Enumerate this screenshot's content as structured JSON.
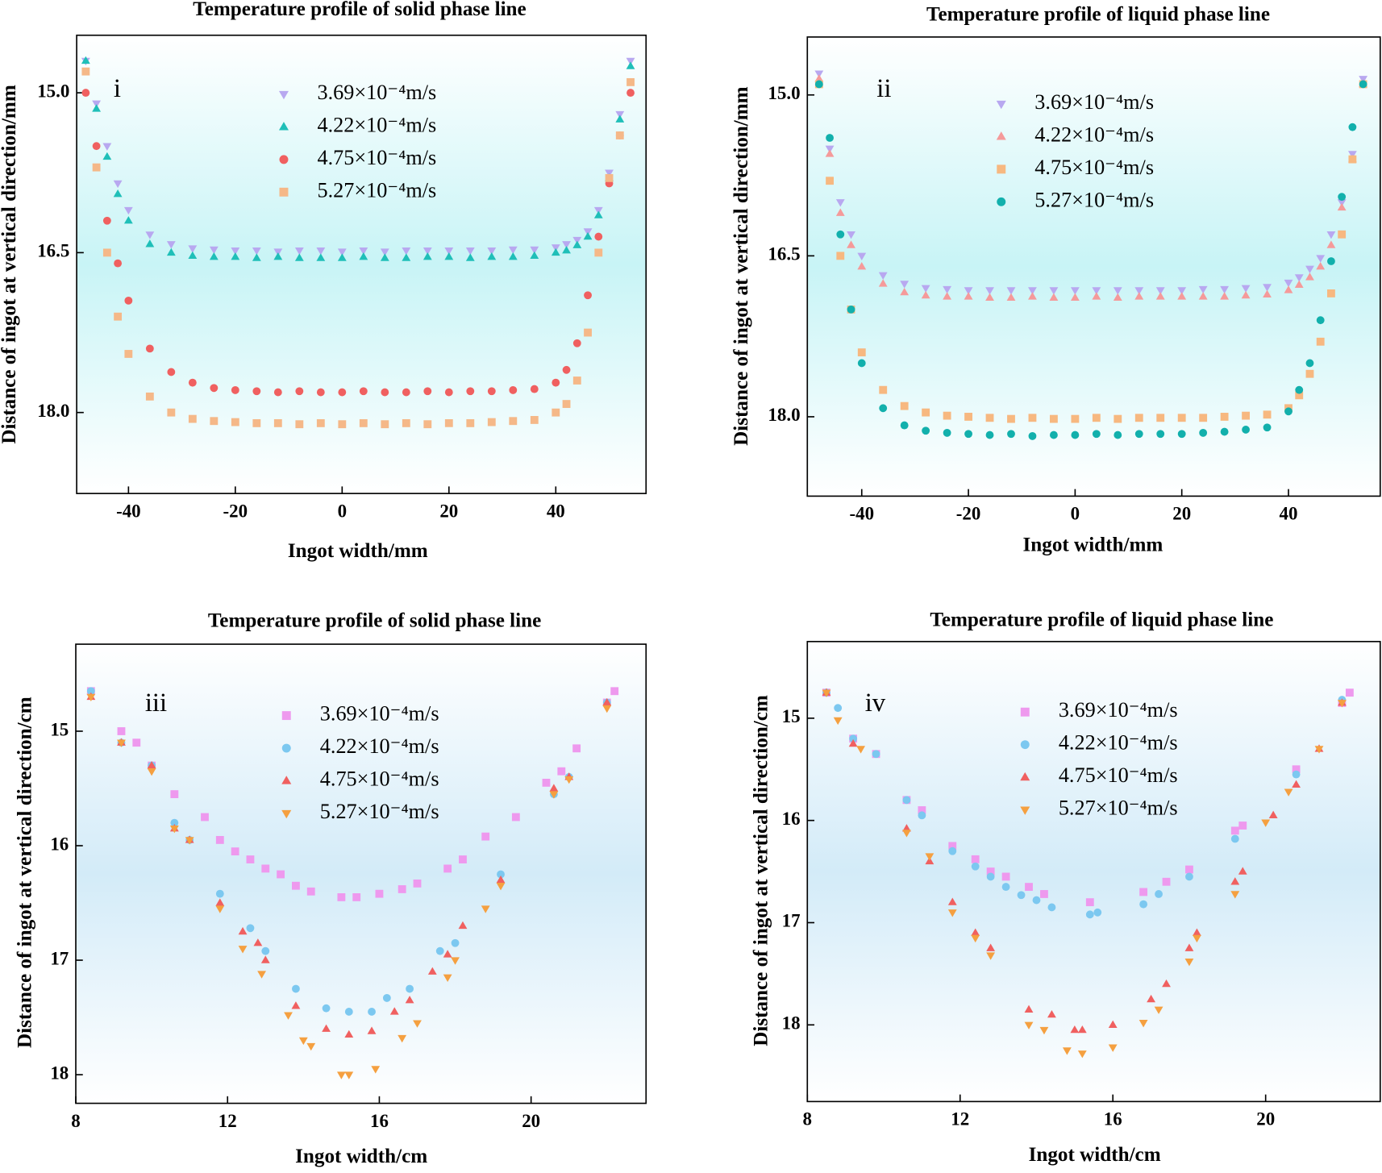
{
  "chart_data": [
    {
      "type": "scatter",
      "title": "Temperature profile of solid phase line",
      "panel_label": "i",
      "xlabel": "Ingot width/mm",
      "ylabel": "Distance of ingot at vertical direction/mm",
      "xlim": [
        -49.7,
        56.9
      ],
      "ylim": [
        14.46,
        18.76
      ],
      "y_inverted": true,
      "xticks": [
        -40,
        -20,
        0,
        20,
        40
      ],
      "yticks": [
        {
          "value": 15,
          "label": "15.0"
        },
        16.5,
        {
          "value": 18,
          "label": "18.0"
        }
      ],
      "x": [
        -48,
        -46,
        -44,
        -42,
        -40,
        -36,
        -32,
        -28,
        -24,
        -20,
        -16,
        -12,
        -8,
        -4,
        0,
        4,
        8,
        12,
        16,
        20,
        24,
        28,
        32,
        36,
        40,
        42,
        44,
        46,
        48,
        50,
        52,
        54
      ],
      "series": [
        {
          "name": "3.69×10⁻⁴m/s",
          "color": "#b8a8f0",
          "marker": "triangle-down",
          "values": [
            14.7,
            15.1,
            15.5,
            15.85,
            16.1,
            16.33,
            16.42,
            16.46,
            16.47,
            16.48,
            16.48,
            16.49,
            16.48,
            16.48,
            16.49,
            16.48,
            16.49,
            16.48,
            16.48,
            16.48,
            16.48,
            16.48,
            16.47,
            16.47,
            16.45,
            16.42,
            16.38,
            16.3,
            16.1,
            15.75,
            15.2,
            14.7
          ]
        },
        {
          "name": "4.22×10⁻⁴m/s",
          "color": "#1fbfb8",
          "marker": "triangle-up",
          "values": [
            14.7,
            15.15,
            15.6,
            15.95,
            16.2,
            16.42,
            16.5,
            16.53,
            16.54,
            16.54,
            16.55,
            16.54,
            16.55,
            16.55,
            16.55,
            16.54,
            16.55,
            16.55,
            16.54,
            16.54,
            16.55,
            16.54,
            16.54,
            16.53,
            16.5,
            16.48,
            16.43,
            16.35,
            16.15,
            15.8,
            15.25,
            14.75
          ]
        },
        {
          "name": "4.75×10⁻⁴m/s",
          "color": "#f06060",
          "marker": "circle",
          "values": [
            15.0,
            15.5,
            16.2,
            16.6,
            16.95,
            17.4,
            17.62,
            17.72,
            17.77,
            17.79,
            17.8,
            17.81,
            17.8,
            17.81,
            17.81,
            17.8,
            17.81,
            17.81,
            17.8,
            17.81,
            17.8,
            17.8,
            17.79,
            17.78,
            17.72,
            17.6,
            17.35,
            16.9,
            16.35,
            15.85,
            15.4,
            15.0
          ]
        },
        {
          "name": "5.27×10⁻⁴m/s",
          "color": "#f5b888",
          "marker": "square",
          "values": [
            14.8,
            15.7,
            16.5,
            17.1,
            17.45,
            17.85,
            18.0,
            18.06,
            18.08,
            18.09,
            18.1,
            18.1,
            18.11,
            18.1,
            18.11,
            18.1,
            18.11,
            18.1,
            18.11,
            18.1,
            18.1,
            18.09,
            18.08,
            18.07,
            18.0,
            17.92,
            17.7,
            17.25,
            16.5,
            15.8,
            15.4,
            14.9
          ]
        }
      ]
    },
    {
      "type": "scatter",
      "title": "Temperature profile of liquid phase line",
      "panel_label": "ii",
      "xlabel": "Ingot width/mm",
      "ylabel": "Distance of ingot at vertical direction/mm",
      "xlim": [
        -50.2,
        57.2
      ],
      "ylim": [
        14.46,
        18.74
      ],
      "y_inverted": true,
      "xticks": [
        -40,
        -20,
        0,
        20,
        40
      ],
      "yticks": [
        {
          "value": 15,
          "label": "15.0"
        },
        16.5,
        {
          "value": 18,
          "label": "18.0"
        }
      ],
      "x": [
        -48,
        -46,
        -44,
        -42,
        -40,
        -36,
        -32,
        -28,
        -24,
        -20,
        -16,
        -12,
        -8,
        -4,
        0,
        4,
        8,
        12,
        16,
        20,
        24,
        28,
        32,
        36,
        40,
        42,
        44,
        46,
        48,
        50,
        52,
        54
      ],
      "series": [
        {
          "name": "3.69×10⁻⁴m/s",
          "color": "#b8a8f0",
          "marker": "triangle-down",
          "values": [
            14.8,
            15.5,
            16.0,
            16.3,
            16.5,
            16.68,
            16.76,
            16.8,
            16.81,
            16.82,
            16.82,
            16.82,
            16.82,
            16.82,
            16.82,
            16.82,
            16.82,
            16.82,
            16.82,
            16.82,
            16.81,
            16.81,
            16.8,
            16.79,
            16.75,
            16.7,
            16.62,
            16.52,
            16.3,
            16.0,
            15.55,
            14.85
          ]
        },
        {
          "name": "4.22×10⁻⁴m/s",
          "color": "#f59a9a",
          "marker": "triangle-up",
          "values": [
            14.85,
            15.55,
            16.1,
            16.4,
            16.6,
            16.76,
            16.84,
            16.87,
            16.88,
            16.88,
            16.89,
            16.89,
            16.88,
            16.89,
            16.89,
            16.88,
            16.89,
            16.88,
            16.88,
            16.88,
            16.88,
            16.88,
            16.87,
            16.86,
            16.82,
            16.77,
            16.7,
            16.6,
            16.4,
            16.05,
            15.6,
            14.9
          ]
        },
        {
          "name": "4.75×10⁻⁴m/s",
          "color": "#f7b880",
          "marker": "square",
          "values": [
            14.9,
            15.8,
            16.5,
            17.0,
            17.4,
            17.75,
            17.9,
            17.96,
            17.99,
            18.0,
            18.01,
            18.02,
            18.01,
            18.02,
            18.02,
            18.01,
            18.02,
            18.01,
            18.01,
            18.01,
            18.01,
            18.0,
            17.99,
            17.98,
            17.92,
            17.8,
            17.6,
            17.3,
            16.85,
            16.3,
            15.6,
            14.9
          ]
        },
        {
          "name": "5.27×10⁻⁴m/s",
          "color": "#12b0ac",
          "marker": "circle",
          "values": [
            14.9,
            15.4,
            16.3,
            17.0,
            17.5,
            17.92,
            18.08,
            18.13,
            18.15,
            18.16,
            18.17,
            18.16,
            18.18,
            18.17,
            18.17,
            18.16,
            18.17,
            18.16,
            18.16,
            18.16,
            18.15,
            18.14,
            18.12,
            18.1,
            17.95,
            17.75,
            17.5,
            17.1,
            16.55,
            15.95,
            15.3,
            14.9
          ]
        }
      ]
    },
    {
      "type": "scatter",
      "title": "Temperature profile of solid phase line",
      "panel_label": "iii",
      "xlabel": "Ingot width/cm",
      "ylabel": "Distance of ingot at vertical direction/cm",
      "xlim": [
        8,
        23.03
      ],
      "ylim": [
        14.24,
        18.25
      ],
      "y_inverted": true,
      "xticks": [
        8,
        12,
        16,
        20
      ],
      "yticks": [
        15,
        16,
        17,
        18
      ],
      "series": [
        {
          "name": "3.69×10⁻⁴m/s",
          "color": "#ee99ee",
          "marker": "square",
          "x": [
            8.4,
            9.2,
            9.6,
            10,
            10.6,
            11.4,
            11.8,
            12.2,
            12.6,
            13,
            13.4,
            13.8,
            14.2,
            15,
            15.4,
            16,
            16.6,
            17,
            17.8,
            18.2,
            18.8,
            19.6,
            20.4,
            20.8,
            21.2,
            22,
            22.2
          ],
          "values": [
            14.65,
            15.0,
            15.1,
            15.3,
            15.55,
            15.75,
            15.95,
            16.05,
            16.12,
            16.2,
            16.25,
            16.35,
            16.4,
            16.45,
            16.45,
            16.42,
            16.38,
            16.33,
            16.2,
            16.12,
            15.92,
            15.75,
            15.45,
            15.35,
            15.15,
            14.75,
            14.65
          ]
        },
        {
          "name": "4.22×10⁻⁴m/s",
          "color": "#7cc8f0",
          "marker": "circle",
          "x": [
            8.4,
            9.2,
            10,
            10.6,
            11,
            11.8,
            12.6,
            13,
            13.8,
            14.6,
            15.2,
            15.8,
            16.2,
            16.8,
            17.6,
            18,
            19.2,
            20.6,
            21,
            22
          ],
          "values": [
            14.65,
            15.1,
            15.3,
            15.8,
            15.95,
            16.42,
            16.72,
            16.92,
            17.25,
            17.42,
            17.45,
            17.45,
            17.33,
            17.25,
            16.92,
            16.85,
            16.25,
            15.55,
            15.4,
            14.75
          ]
        },
        {
          "name": "4.75×10⁻⁴m/s",
          "color": "#f06060",
          "marker": "triangle-up",
          "x": [
            8.4,
            9.2,
            10,
            10.6,
            11,
            11.8,
            12.4,
            12.8,
            13,
            13.8,
            14.6,
            15.2,
            15.8,
            16.4,
            16.8,
            17.4,
            17.8,
            18.2,
            19.2,
            20.6,
            21,
            22
          ],
          "values": [
            14.7,
            15.1,
            15.3,
            15.85,
            15.95,
            16.5,
            16.75,
            16.85,
            17.0,
            17.4,
            17.6,
            17.65,
            17.62,
            17.45,
            17.35,
            17.1,
            16.95,
            16.7,
            16.3,
            15.5,
            15.4,
            14.75
          ]
        },
        {
          "name": "5.27×10⁻⁴m/s",
          "color": "#f5a040",
          "marker": "triangle-down",
          "x": [
            8.4,
            9.2,
            10,
            10.6,
            11,
            11.8,
            12.4,
            12.9,
            13.6,
            14,
            14.2,
            15,
            15.2,
            15.9,
            16.6,
            17,
            17.8,
            18,
            18.8,
            19.2,
            20.6,
            21,
            22
          ],
          "values": [
            14.7,
            15.1,
            15.35,
            15.85,
            15.95,
            16.55,
            16.9,
            17.12,
            17.48,
            17.7,
            17.75,
            18.0,
            18.0,
            17.95,
            17.68,
            17.55,
            17.15,
            17.0,
            16.55,
            16.35,
            15.55,
            15.42,
            14.8
          ]
        }
      ]
    },
    {
      "type": "scatter",
      "title": "Temperature profile of liquid phase line",
      "panel_label": "iv",
      "xlabel": "Ingot width/cm",
      "ylabel": "Distance of ingot at vertical direction/cm",
      "xlim": [
        8,
        23.0
      ],
      "ylim": [
        14.25,
        18.75
      ],
      "y_inverted": true,
      "xticks": [
        8,
        12,
        16,
        20
      ],
      "yticks": [
        15,
        16,
        17,
        18
      ],
      "series": [
        {
          "name": "3.69×10⁻⁴m/s",
          "color": "#ee99ee",
          "marker": "square",
          "x": [
            8.5,
            9.2,
            9.8,
            10.6,
            11,
            11.8,
            12.4,
            12.8,
            13.2,
            13.8,
            14.2,
            15.4,
            16.8,
            17.4,
            18,
            19.2,
            19.4,
            20.8,
            22,
            22.2
          ],
          "values": [
            14.75,
            15.2,
            15.35,
            15.8,
            15.9,
            16.25,
            16.38,
            16.5,
            16.55,
            16.65,
            16.72,
            16.8,
            16.7,
            16.6,
            16.48,
            16.1,
            16.05,
            15.5,
            14.85,
            14.75
          ]
        },
        {
          "name": "4.22×10⁻⁴m/s",
          "color": "#7cc8f0",
          "marker": "circle",
          "x": [
            8.5,
            8.8,
            9.2,
            9.8,
            10.6,
            11,
            11.8,
            12.4,
            12.8,
            13.2,
            13.6,
            14,
            14.4,
            15.4,
            15.6,
            16.8,
            17.2,
            18,
            19.2,
            20.8,
            22
          ],
          "values": [
            14.75,
            14.9,
            15.2,
            15.35,
            15.8,
            15.95,
            16.3,
            16.45,
            16.55,
            16.65,
            16.73,
            16.78,
            16.85,
            16.92,
            16.9,
            16.82,
            16.72,
            16.55,
            16.18,
            15.55,
            14.82
          ]
        },
        {
          "name": "4.75×10⁻⁴m/s",
          "color": "#f06060",
          "marker": "triangle-up",
          "x": [
            8.5,
            9.2,
            10.6,
            11.2,
            11.8,
            12.4,
            12.8,
            13.8,
            14.4,
            15,
            15.2,
            16,
            17,
            17.4,
            18,
            18.2,
            19.2,
            19.4,
            20.2,
            20.8,
            21.4,
            22
          ],
          "values": [
            14.75,
            15.25,
            16.08,
            16.4,
            16.8,
            17.1,
            17.25,
            17.85,
            17.9,
            18.05,
            18.05,
            18.0,
            17.75,
            17.6,
            17.25,
            17.1,
            16.6,
            16.5,
            15.95,
            15.65,
            15.3,
            14.85
          ]
        },
        {
          "name": "5.27×10⁻⁴m/s",
          "color": "#f5a040",
          "marker": "triangle-down",
          "x": [
            8.5,
            8.8,
            9.4,
            10.6,
            11.2,
            11.8,
            12.4,
            12.8,
            13.8,
            14.2,
            14.8,
            15.2,
            16,
            16.8,
            17.2,
            18,
            18.2,
            19.2,
            20,
            20.6,
            21.4,
            22
          ],
          "values": [
            14.75,
            15.02,
            15.3,
            16.12,
            16.35,
            16.9,
            17.15,
            17.32,
            18.0,
            18.05,
            18.25,
            18.28,
            18.22,
            17.98,
            17.85,
            17.38,
            17.15,
            16.72,
            16.02,
            15.72,
            15.3,
            14.85
          ]
        }
      ]
    }
  ]
}
